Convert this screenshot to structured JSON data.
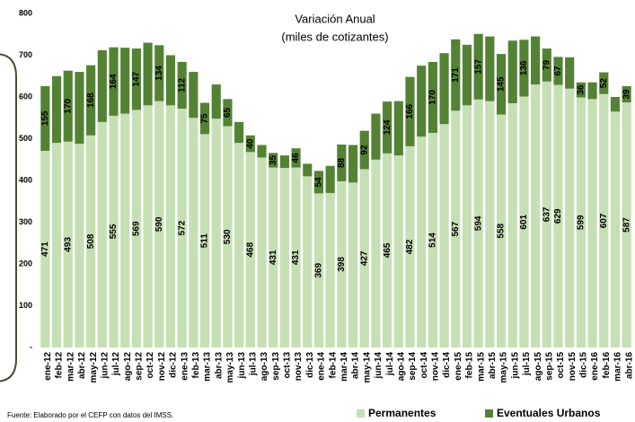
{
  "chart_data": {
    "type": "stacked_bar",
    "title": "Variación Anual",
    "subtitle": "(miles de cotizantes)",
    "source": "Fuente: Elaborado por el CEFP con datos del IMSS.",
    "categories": [
      "ene-12",
      "feb-12",
      "mar-12",
      "abr-12",
      "may-12",
      "jun-12",
      "jul-12",
      "ago-12",
      "sep-12",
      "oct-12",
      "nov-12",
      "dic-12",
      "ene-13",
      "feb-13",
      "mar-13",
      "abr-13",
      "may-13",
      "jun-13",
      "jul-13",
      "ago-13",
      "sep-13",
      "oct-13",
      "nov-13",
      "dic-13",
      "ene-14",
      "feb-14",
      "mar-14",
      "abr-14",
      "may-14",
      "jun-14",
      "jul-14",
      "ago-14",
      "sep-14",
      "oct-14",
      "nov-14",
      "dic-14",
      "ene-15",
      "feb-15",
      "mar-15",
      "abr-15",
      "may-15",
      "jun-15",
      "jul-15",
      "ago-15",
      "sep-15",
      "oct-15",
      "nov-15",
      "dic-15",
      "ene-16",
      "feb-16",
      "mar-16",
      "abr-16"
    ],
    "series": [
      {
        "name": "Permanentes",
        "color": "#c5e0b4",
        "values": [
          471,
          490,
          493,
          488,
          508,
          540,
          555,
          560,
          569,
          580,
          590,
          580,
          572,
          550,
          511,
          548,
          530,
          490,
          468,
          455,
          431,
          430,
          431,
          410,
          369,
          370,
          398,
          395,
          427,
          450,
          465,
          460,
          482,
          505,
          514,
          535,
          567,
          580,
          594,
          590,
          558,
          585,
          601,
          630,
          637,
          629,
          620,
          599,
          595,
          607,
          565,
          587
        ],
        "value_labels": [
          471,
          null,
          493,
          null,
          508,
          null,
          555,
          null,
          569,
          null,
          590,
          null,
          572,
          null,
          511,
          null,
          530,
          null,
          468,
          null,
          431,
          null,
          431,
          null,
          369,
          null,
          398,
          null,
          427,
          null,
          465,
          null,
          482,
          null,
          514,
          null,
          567,
          null,
          594,
          null,
          558,
          null,
          601,
          null,
          637,
          629,
          null,
          599,
          null,
          607,
          null,
          587
        ]
      },
      {
        "name": "Eventuales Urbanos",
        "color": "#548235",
        "values": [
          155,
          160,
          170,
          172,
          168,
          172,
          164,
          158,
          147,
          150,
          134,
          120,
          112,
          110,
          75,
          82,
          65,
          50,
          40,
          30,
          35,
          30,
          46,
          30,
          54,
          65,
          88,
          90,
          92,
          110,
          124,
          130,
          166,
          170,
          170,
          170,
          171,
          145,
          157,
          155,
          145,
          150,
          136,
          115,
          79,
          67,
          75,
          36,
          40,
          52,
          35,
          39
        ],
        "value_labels": [
          155,
          null,
          170,
          null,
          168,
          null,
          164,
          null,
          147,
          null,
          134,
          null,
          112,
          null,
          75,
          null,
          65,
          null,
          40,
          null,
          35,
          null,
          46,
          null,
          54,
          null,
          88,
          null,
          92,
          null,
          124,
          null,
          166,
          null,
          170,
          null,
          171,
          null,
          157,
          null,
          145,
          null,
          136,
          null,
          79,
          67,
          null,
          36,
          null,
          52,
          null,
          39
        ]
      }
    ],
    "ylim": [
      0,
      800
    ],
    "yticks": [
      {
        "value": 0,
        "label": "-"
      },
      100,
      200,
      300,
      400,
      500,
      600,
      700,
      800
    ],
    "grid": false,
    "legend": "bottom-right"
  }
}
